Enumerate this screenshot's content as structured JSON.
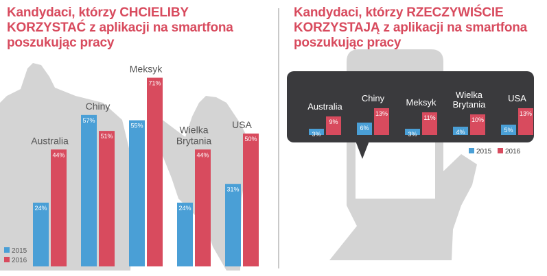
{
  "colors": {
    "series_2015": "#4a9fd6",
    "series_2016": "#d84b5e",
    "title": "#d84b5e",
    "silhouette": "#d4d4d4",
    "bubble": "#3a3a3d"
  },
  "left": {
    "title": "Kandydaci, którzy CHCIELIBY KORZYSTAĆ z aplikacji na smartfona poszukując pracy"
  },
  "right": {
    "title": "Kandydaci, którzy RZECZYWIŚCIE KORZYSTAJĄ z aplikacji na smartfona poszukując pracy"
  },
  "chart_data": [
    {
      "type": "bar",
      "title": "Kandydaci, którzy CHCIELIBY KORZYSTAĆ z aplikacji na smartfona poszukując pracy",
      "categories": [
        "Australia",
        "Chiny",
        "Meksyk",
        "Wielka Brytania",
        "USA"
      ],
      "category_lines": [
        [
          "Australia"
        ],
        [
          "Chiny"
        ],
        [
          "Meksyk"
        ],
        [
          "Wielka",
          "Brytania"
        ],
        [
          "USA"
        ]
      ],
      "series": [
        {
          "name": "2015",
          "values": [
            24,
            57,
            55,
            24,
            31
          ],
          "labels": [
            "24%",
            "57%",
            "55%",
            "24%",
            "31%"
          ]
        },
        {
          "name": "2016",
          "values": [
            44,
            51,
            71,
            44,
            50
          ],
          "labels": [
            "44%",
            "51%",
            "71%",
            "44%",
            "50%"
          ]
        }
      ],
      "ylim": [
        0,
        80
      ],
      "grid": false,
      "legend": "bottom-left"
    },
    {
      "type": "bar",
      "title": "Kandydaci, którzy RZECZYWIŚCIE KORZYSTAJĄ z aplikacji na smartfona poszukując pracy",
      "categories": [
        "Australia",
        "Chiny",
        "Meksyk",
        "Wielka Brytania",
        "USA"
      ],
      "category_lines": [
        [
          "Australia"
        ],
        [
          "Chiny"
        ],
        [
          "Meksyk"
        ],
        [
          "Wielka",
          "Brytania"
        ],
        [
          "USA"
        ]
      ],
      "series": [
        {
          "name": "2015",
          "values": [
            3,
            6,
            3,
            4,
            5
          ],
          "labels": [
            "3%",
            "6%",
            "3%",
            "4%",
            "5%"
          ]
        },
        {
          "name": "2016",
          "values": [
            9,
            13,
            11,
            10,
            13
          ],
          "labels": [
            "9%",
            "13%",
            "11%",
            "10%",
            "13%"
          ]
        }
      ],
      "ylim": [
        0,
        15
      ],
      "grid": false,
      "legend": "bottom-right"
    }
  ]
}
